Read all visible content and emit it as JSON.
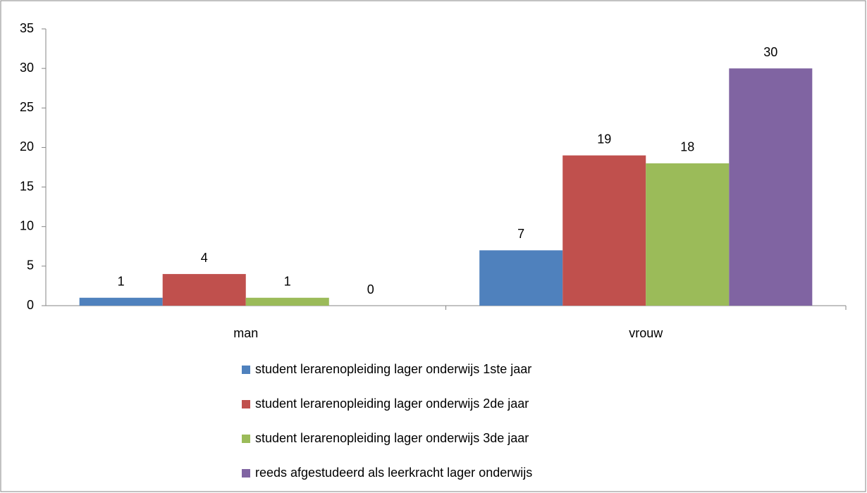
{
  "chart_data": {
    "type": "bar",
    "categories": [
      "man",
      "vrouw"
    ],
    "series": [
      {
        "name": "student lerarenopleiding lager onderwijs 1ste jaar",
        "color": "#4f81bd",
        "values": [
          1,
          7
        ]
      },
      {
        "name": "student lerarenopleiding lager onderwijs 2de jaar",
        "color": "#c0504d",
        "values": [
          4,
          19
        ]
      },
      {
        "name": "student lerarenopleiding lager onderwijs 3de jaar",
        "color": "#9bbb59",
        "values": [
          1,
          18
        ]
      },
      {
        "name": "reeds afgestudeerd als leerkracht lager onderwijs",
        "color": "#8064a2",
        "values": [
          0,
          30
        ]
      }
    ],
    "ylim": [
      0,
      35
    ],
    "yticks": [
      0,
      5,
      10,
      15,
      20,
      25,
      30,
      35
    ],
    "grid": false,
    "legend": "bottom"
  }
}
